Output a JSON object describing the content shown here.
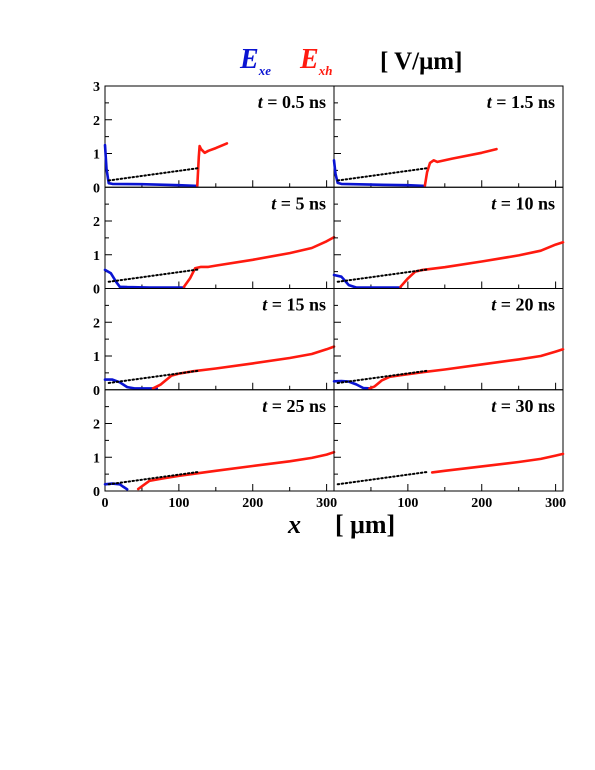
{
  "legend": {
    "ex_symbol": "E",
    "ex_sub": "xe",
    "eh_symbol": "E",
    "eh_sub": "xh",
    "unit": "[ V/μm]",
    "colors": {
      "electron": "#0a14d2",
      "hole": "#ff1a0f",
      "reference": "#000000"
    }
  },
  "xaxis": {
    "symbol": "x",
    "unit": "[ μm]"
  },
  "chart_data": {
    "type": "line",
    "layout": "grid 4 rows x 2 columns, shared x and y axes",
    "xlim": [
      0,
      310
    ],
    "ylim": [
      0,
      3
    ],
    "xticks": [
      0,
      100,
      200,
      300
    ],
    "yticks": [
      0,
      1,
      2,
      3
    ],
    "grid": false,
    "panels": [
      {
        "label": "t = 0.5 ns",
        "series": [
          {
            "color": "#0a14d2",
            "x": [
              0,
              2,
              5,
              10,
              50,
              100,
              125
            ],
            "y": [
              1.25,
              0.55,
              0.12,
              0.1,
              0.09,
              0.06,
              0.04
            ]
          },
          {
            "color": "#ff1a0f",
            "x": [
              125,
              127,
              128,
              130,
              135,
              140,
              150,
              165
            ],
            "y": [
              0.05,
              0.9,
              1.22,
              1.13,
              1.02,
              1.08,
              1.16,
              1.3
            ]
          },
          {
            "color": "#000000",
            "dash": true,
            "x": [
              5,
              125
            ],
            "y": [
              0.2,
              0.56
            ]
          }
        ]
      },
      {
        "label": "t = 1.5 ns",
        "series": [
          {
            "color": "#0a14d2",
            "x": [
              0,
              2,
              5,
              10,
              50,
              100,
              123
            ],
            "y": [
              0.8,
              0.4,
              0.13,
              0.1,
              0.08,
              0.06,
              0.04
            ]
          },
          {
            "color": "#ff1a0f",
            "x": [
              123,
              126,
              130,
              135,
              140,
              160,
              200,
              220
            ],
            "y": [
              0.05,
              0.45,
              0.72,
              0.8,
              0.75,
              0.85,
              1.02,
              1.13
            ]
          },
          {
            "color": "#000000",
            "dash": true,
            "x": [
              5,
              125
            ],
            "y": [
              0.2,
              0.56
            ]
          }
        ]
      },
      {
        "label": "t = 5  ns",
        "series": [
          {
            "color": "#0a14d2",
            "x": [
              0,
              8,
              15,
              20,
              30,
              60,
              100,
              107
            ],
            "y": [
              0.55,
              0.45,
              0.2,
              0.05,
              0.04,
              0.03,
              0.03,
              0.03
            ]
          },
          {
            "color": "#ff1a0f",
            "x": [
              107,
              115,
              122,
              130,
              140,
              150,
              200,
              250,
              280,
              300,
              310
            ],
            "y": [
              0.05,
              0.3,
              0.6,
              0.64,
              0.64,
              0.68,
              0.85,
              1.05,
              1.2,
              1.4,
              1.52
            ]
          },
          {
            "color": "#000000",
            "dash": true,
            "x": [
              5,
              125
            ],
            "y": [
              0.2,
              0.56
            ]
          }
        ]
      },
      {
        "label": "t = 10  ns",
        "series": [
          {
            "color": "#0a14d2",
            "x": [
              0,
              10,
              20,
              30,
              60,
              90
            ],
            "y": [
              0.4,
              0.35,
              0.1,
              0.03,
              0.03,
              0.03
            ]
          },
          {
            "color": "#ff1a0f",
            "x": [
              90,
              100,
              110,
              120,
              150,
              200,
              250,
              280,
              300,
              310
            ],
            "y": [
              0.05,
              0.3,
              0.5,
              0.55,
              0.63,
              0.8,
              0.98,
              1.12,
              1.3,
              1.37
            ]
          },
          {
            "color": "#000000",
            "dash": true,
            "x": [
              5,
              125
            ],
            "y": [
              0.2,
              0.56
            ]
          }
        ]
      },
      {
        "label": "t = 15  ns",
        "series": [
          {
            "color": "#0a14d2",
            "x": [
              0,
              10,
              20,
              30,
              40,
              60,
              70
            ],
            "y": [
              0.3,
              0.3,
              0.22,
              0.08,
              0.04,
              0.04,
              0.04
            ]
          },
          {
            "color": "#ff1a0f",
            "x": [
              65,
              75,
              90,
              100,
              120,
              150,
              200,
              250,
              280,
              300,
              310
            ],
            "y": [
              0.04,
              0.15,
              0.42,
              0.48,
              0.55,
              0.63,
              0.78,
              0.94,
              1.06,
              1.2,
              1.28
            ]
          },
          {
            "color": "#000000",
            "dash": true,
            "x": [
              5,
              125
            ],
            "y": [
              0.2,
              0.56
            ]
          }
        ]
      },
      {
        "label": "t = 20  ns",
        "series": [
          {
            "color": "#0a14d2",
            "x": [
              0,
              10,
              20,
              30,
              40,
              50
            ],
            "y": [
              0.25,
              0.26,
              0.24,
              0.16,
              0.05,
              0.04
            ]
          },
          {
            "color": "#ff1a0f",
            "x": [
              48,
              55,
              65,
              75,
              90,
              120,
              150,
              200,
              250,
              280,
              300,
              310
            ],
            "y": [
              0.04,
              0.1,
              0.28,
              0.38,
              0.43,
              0.52,
              0.6,
              0.75,
              0.9,
              1.0,
              1.13,
              1.2
            ]
          },
          {
            "color": "#000000",
            "dash": true,
            "x": [
              5,
              125
            ],
            "y": [
              0.2,
              0.56
            ]
          }
        ]
      },
      {
        "label": "t = 25  ns",
        "series": [
          {
            "color": "#0a14d2",
            "x": [
              0,
              10,
              20,
              25,
              30
            ],
            "y": [
              0.2,
              0.22,
              0.2,
              0.12,
              0.05
            ]
          },
          {
            "color": "#ff1a0f",
            "x": [
              45,
              60,
              80,
              100,
              150,
              200,
              250,
              280,
              300,
              310
            ],
            "y": [
              0.06,
              0.3,
              0.38,
              0.45,
              0.6,
              0.74,
              0.88,
              0.98,
              1.08,
              1.15
            ]
          },
          {
            "color": "#000000",
            "dash": true,
            "x": [
              5,
              125
            ],
            "y": [
              0.2,
              0.56
            ]
          }
        ]
      },
      {
        "label": "t = 30  ns",
        "series": [
          {
            "color": "#ff1a0f",
            "x": [
              133,
              150,
              200,
              250,
              280,
              300,
              310
            ],
            "y": [
              0.55,
              0.6,
              0.73,
              0.86,
              0.95,
              1.05,
              1.1
            ]
          },
          {
            "color": "#000000",
            "dash": true,
            "x": [
              5,
              125
            ],
            "y": [
              0.2,
              0.56
            ]
          }
        ]
      }
    ]
  }
}
